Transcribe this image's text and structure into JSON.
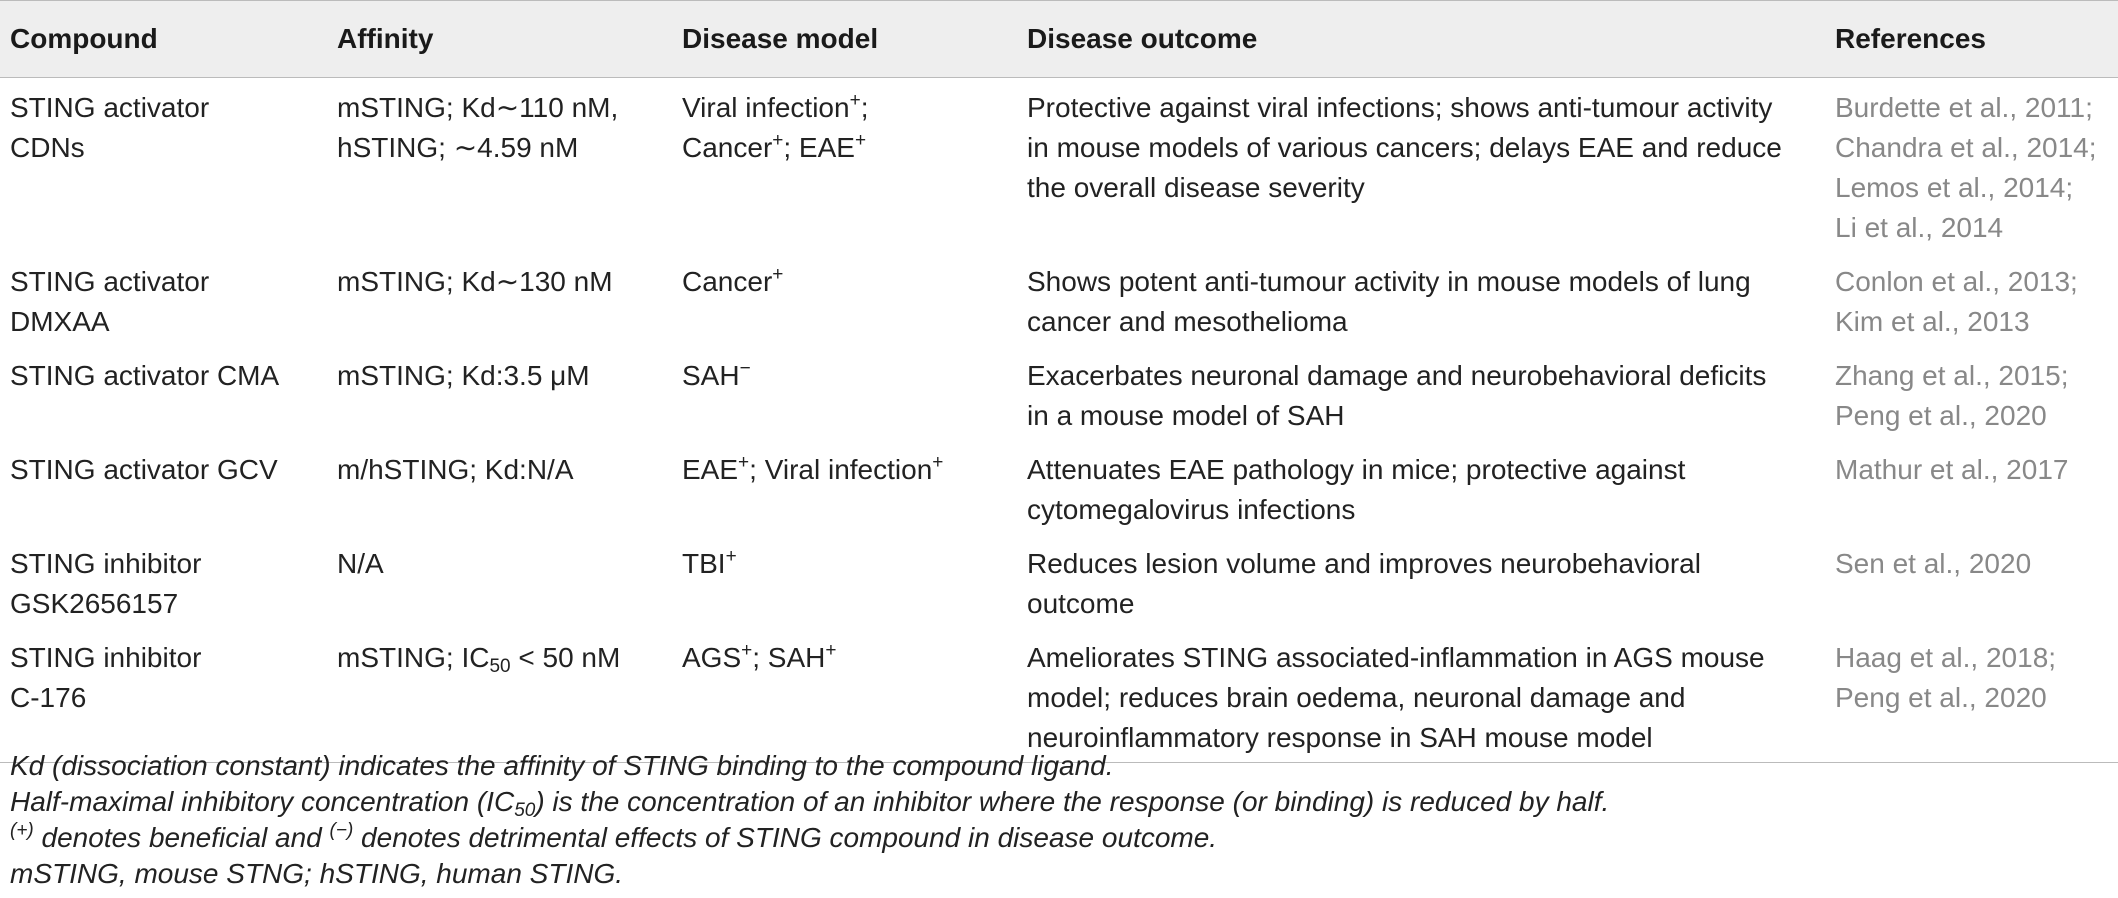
{
  "table": {
    "headers": [
      "Compound",
      "Affinity",
      "Disease model",
      "Disease outcome",
      "References"
    ],
    "rows": [
      {
        "compound": [
          "STING activator",
          "CDNs"
        ],
        "affinity": [
          "mSTING; Kd∼110 nM,",
          "hSTING; ∼4.59 nM"
        ],
        "model": [
          "Viral infection⁺;",
          "Cancer⁺; EAE⁺"
        ],
        "outcome": [
          "Protective against viral infections; shows anti-tumour activity",
          "in mouse models of various cancers; delays EAE and reduce",
          "the overall disease severity"
        ],
        "refs": [
          "Burdette et al., 2011;",
          "Chandra et al., 2014;",
          "Lemos et al., 2014;",
          "Li et al., 2014"
        ]
      },
      {
        "compound": [
          "STING activator",
          "DMXAA"
        ],
        "affinity": [
          "mSTING; Kd∼130 nM"
        ],
        "model": [
          "Cancer⁺"
        ],
        "outcome": [
          "Shows potent anti-tumour activity in mouse models of lung",
          "cancer and mesothelioma"
        ],
        "refs": [
          "Conlon et al., 2013;",
          "Kim et al., 2013"
        ]
      },
      {
        "compound": [
          "STING activator CMA"
        ],
        "affinity": [
          "mSTING; Kd:3.5 μM"
        ],
        "model": [
          "SAH⁻"
        ],
        "outcome": [
          "Exacerbates neuronal damage and neurobehavioral deficits",
          "in a mouse model of SAH"
        ],
        "refs": [
          "Zhang et al., 2015;",
          "Peng et al., 2020"
        ]
      },
      {
        "compound": [
          "STING activator GCV"
        ],
        "affinity": [
          "m/hSTING; Kd:N/A"
        ],
        "model": [
          "EAE⁺; Viral infection⁺"
        ],
        "outcome": [
          "Attenuates EAE pathology in mice; protective against",
          "cytomegalovirus infections"
        ],
        "refs": [
          "Mathur et al., 2017"
        ]
      },
      {
        "compound": [
          "STING inhibitor",
          "GSK2656157"
        ],
        "affinity": [
          "N/A"
        ],
        "model": [
          "TBI⁺"
        ],
        "outcome": [
          "Reduces lesion volume and improves neurobehavioral",
          "outcome"
        ],
        "refs": [
          "Sen et al., 2020"
        ]
      },
      {
        "compound": [
          "STING inhibitor",
          "C-176"
        ],
        "affinity": [
          "mSTING; IC₅₀ < 50 nM"
        ],
        "model": [
          "AGS⁺; SAH⁺"
        ],
        "outcome": [
          "Ameliorates STING associated-inflammation in AGS mouse",
          "model; reduces brain oedema, neuronal damage and",
          "neuroinflammatory response in SAH mouse model"
        ],
        "refs": [
          "Haag et al., 2018;",
          "Peng et al., 2020"
        ]
      }
    ]
  },
  "notes": [
    "Kd (dissociation constant) indicates the affinity of STING binding to the compound ligand.",
    "Half-maximal inhibitory concentration (IC₅₀) is the concentration of an inhibitor where the response (or binding) is reduced by half.",
    "⁽⁺⁾ denotes beneficial and ⁽⁻⁾ denotes detrimental effects of STING compound in disease outcome.",
    "mSTING, mouse STNG; hSTING, human STING."
  ]
}
